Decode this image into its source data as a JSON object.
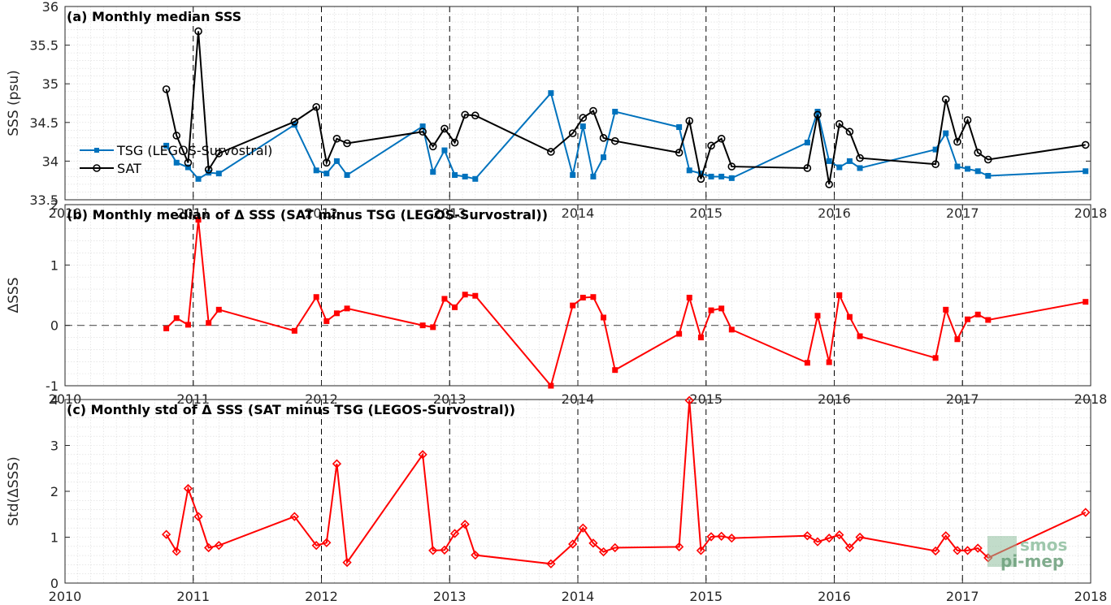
{
  "chart_data": [
    {
      "type": "line",
      "title": "(a) Monthly median SSS",
      "ylabel": "SSS (psu)",
      "xlim": [
        2010,
        2018
      ],
      "ylim": [
        33.5,
        36
      ],
      "y_ticks": [
        "33.5",
        "34",
        "34.5",
        "35",
        "35.5",
        "36"
      ],
      "grid": "minor dotted, dashed vertical at year boundaries",
      "legend_position": "left",
      "series": [
        {
          "name": "TSG (LEGOS-Survostral)",
          "color": "#0072bd",
          "marker": "square",
          "x": [
            2010.79,
            2010.87,
            2010.96,
            2011.04,
            2011.12,
            2011.2,
            2011.79,
            2011.96,
            2012.04,
            2012.12,
            2012.2,
            2012.79,
            2012.87,
            2012.96,
            2013.04,
            2013.12,
            2013.2,
            2013.79,
            2013.96,
            2014.04,
            2014.12,
            2014.2,
            2014.29,
            2014.79,
            2014.87,
            2014.96,
            2015.04,
            2015.12,
            2015.2,
            2015.79,
            2015.87,
            2015.96,
            2016.04,
            2016.12,
            2016.2,
            2016.79,
            2016.87,
            2016.96,
            2017.04,
            2017.12,
            2017.2,
            2017.96
          ],
          "y": [
            34.2,
            33.98,
            33.92,
            33.77,
            33.85,
            33.84,
            34.47,
            33.88,
            33.84,
            34.0,
            33.82,
            34.45,
            33.86,
            34.14,
            33.82,
            33.8,
            33.77,
            34.88,
            33.82,
            34.45,
            33.8,
            34.05,
            34.64,
            34.44,
            33.88,
            33.84,
            33.8,
            33.8,
            33.78,
            34.24,
            34.64,
            34.0,
            33.92,
            34.0,
            33.91,
            34.15,
            34.36,
            33.93,
            33.9,
            33.87,
            33.81,
            33.87
          ]
        },
        {
          "name": "SAT",
          "color": "#000000",
          "marker": "circle",
          "x": [
            2010.79,
            2010.87,
            2010.96,
            2011.04,
            2011.12,
            2011.2,
            2011.79,
            2011.96,
            2012.04,
            2012.12,
            2012.2,
            2012.79,
            2012.87,
            2012.96,
            2013.04,
            2013.12,
            2013.2,
            2013.79,
            2013.96,
            2014.04,
            2014.12,
            2014.2,
            2014.29,
            2014.79,
            2014.87,
            2014.96,
            2015.04,
            2015.12,
            2015.2,
            2015.79,
            2015.87,
            2015.96,
            2016.04,
            2016.12,
            2016.2,
            2016.79,
            2016.87,
            2016.96,
            2017.04,
            2017.12,
            2017.2,
            2017.96
          ],
          "y": [
            34.93,
            34.33,
            33.98,
            35.68,
            33.89,
            34.1,
            34.51,
            34.7,
            33.98,
            34.29,
            34.23,
            34.38,
            34.19,
            34.42,
            34.24,
            34.6,
            34.59,
            34.12,
            34.36,
            34.56,
            34.65,
            34.3,
            34.26,
            34.11,
            34.52,
            33.77,
            34.2,
            34.29,
            33.93,
            33.91,
            34.6,
            33.7,
            34.48,
            34.38,
            34.04,
            33.96,
            34.8,
            34.25,
            34.53,
            34.11,
            34.02,
            34.21
          ]
        }
      ],
      "x_ticks": [
        "2010",
        "2011",
        "2012",
        "2013",
        "2014",
        "2015",
        "2016",
        "2017",
        "2018"
      ]
    },
    {
      "type": "line",
      "title": "(b) Monthly median of Δ SSS (SAT minus TSG (LEGOS-Survostral))",
      "ylabel": "ΔSSS",
      "xlim": [
        2010,
        2018
      ],
      "ylim": [
        -1,
        2
      ],
      "y_ticks": [
        "-1",
        "0",
        "1",
        "2"
      ],
      "zero_line": "dashed",
      "series": [
        {
          "color": "#ff0000",
          "marker": "square",
          "x": [
            2010.79,
            2010.87,
            2010.96,
            2011.04,
            2011.12,
            2011.2,
            2011.79,
            2011.96,
            2012.04,
            2012.12,
            2012.2,
            2012.79,
            2012.87,
            2012.96,
            2013.04,
            2013.12,
            2013.2,
            2013.79,
            2013.96,
            2014.04,
            2014.12,
            2014.2,
            2014.29,
            2014.79,
            2014.87,
            2014.96,
            2015.04,
            2015.12,
            2015.2,
            2015.79,
            2015.87,
            2015.96,
            2016.04,
            2016.12,
            2016.2,
            2016.79,
            2016.87,
            2016.96,
            2017.04,
            2017.12,
            2017.2,
            2017.96
          ],
          "y": [
            -0.05,
            0.12,
            0.01,
            1.75,
            0.04,
            0.26,
            -0.09,
            0.47,
            0.07,
            0.2,
            0.28,
            0.0,
            -0.03,
            0.44,
            0.3,
            0.51,
            0.49,
            -1.0,
            0.33,
            0.46,
            0.47,
            0.13,
            -0.74,
            -0.14,
            0.46,
            -0.2,
            0.25,
            0.28,
            -0.07,
            -0.62,
            0.16,
            -0.61,
            0.5,
            0.14,
            -0.18,
            -0.54,
            0.26,
            -0.23,
            0.1,
            0.18,
            0.09,
            0.39
          ]
        }
      ],
      "x_ticks": [
        "2010",
        "2011",
        "2012",
        "2013",
        "2014",
        "2015",
        "2016",
        "2017",
        "2018"
      ]
    },
    {
      "type": "line",
      "title": "(c) Monthly std of Δ SSS (SAT minus TSG (LEGOS-Survostral))",
      "ylabel": "Std(ΔSSS)",
      "xlim": [
        2010,
        2018
      ],
      "ylim": [
        0,
        4
      ],
      "y_ticks": [
        "0",
        "1",
        "2",
        "3",
        "4"
      ],
      "x_ticks": [
        "2010",
        "2011",
        "2012",
        "2013",
        "2014",
        "2015",
        "2016",
        "2017",
        "2018"
      ],
      "series": [
        {
          "color": "#ff0000",
          "marker": "diamond",
          "x": [
            2010.79,
            2010.87,
            2010.96,
            2011.04,
            2011.12,
            2011.2,
            2011.79,
            2011.96,
            2012.04,
            2012.12,
            2012.2,
            2012.79,
            2012.87,
            2012.96,
            2013.04,
            2013.12,
            2013.2,
            2013.79,
            2013.96,
            2014.04,
            2014.12,
            2014.2,
            2014.29,
            2014.79,
            2014.87,
            2014.96,
            2015.04,
            2015.12,
            2015.2,
            2015.79,
            2015.87,
            2015.96,
            2016.04,
            2016.12,
            2016.2,
            2016.79,
            2016.87,
            2016.96,
            2017.04,
            2017.12,
            2017.2,
            2017.96
          ],
          "y": [
            1.06,
            0.69,
            2.06,
            1.45,
            0.77,
            0.82,
            1.45,
            0.82,
            0.88,
            2.6,
            0.45,
            2.8,
            0.71,
            0.72,
            1.08,
            1.28,
            0.61,
            0.42,
            0.85,
            1.2,
            0.87,
            0.68,
            0.77,
            0.79,
            3.98,
            0.71,
            1.01,
            1.02,
            0.98,
            1.03,
            0.9,
            0.98,
            1.05,
            0.77,
            1.0,
            0.7,
            1.03,
            0.71,
            0.71,
            0.76,
            0.55,
            1.54
          ]
        }
      ]
    }
  ],
  "watermark": {
    "line1": "smos",
    "line2": "pi-mep"
  }
}
